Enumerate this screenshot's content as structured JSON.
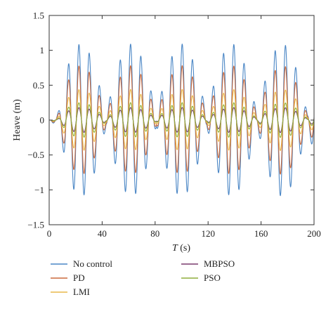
{
  "chart_data": {
    "type": "line",
    "title": "",
    "xlabel_var": "T",
    "xlabel_unit": " (s)",
    "ylabel": "Heave (m)",
    "xlim": [
      0,
      200
    ],
    "ylim": [
      -1.5,
      1.5
    ],
    "xticks": [
      0,
      40,
      80,
      120,
      160,
      200
    ],
    "yticks": [
      -1.5,
      -1,
      -0.5,
      0,
      0.5,
      1,
      1.5
    ],
    "xtick_labels": [
      "0",
      "40",
      "80",
      "120",
      "160",
      "200"
    ],
    "ytick_labels": [
      "−1.5",
      "−1",
      "−0.5",
      "0",
      "0.5",
      "1",
      "1.5"
    ],
    "grid": false,
    "legend_position": "bottom",
    "signal": {
      "period_s": 7.8,
      "envelope_beat_period_s": 76,
      "envelope_first_peak_s": 24,
      "start_s": 1,
      "settle_s": 12
    },
    "series": [
      {
        "name": "No control",
        "color": "#4a86c5",
        "amplitude": 1.09
      },
      {
        "name": "PD",
        "color": "#cc6a3c",
        "amplitude": 0.78
      },
      {
        "name": "LMI",
        "color": "#e8b84a",
        "amplitude": 0.44
      },
      {
        "name": "MBPSO",
        "color": "#7a3a6e",
        "amplitude": 0.18
      },
      {
        "name": "PSO",
        "color": "#8fae3c",
        "amplitude": 0.25
      }
    ]
  }
}
